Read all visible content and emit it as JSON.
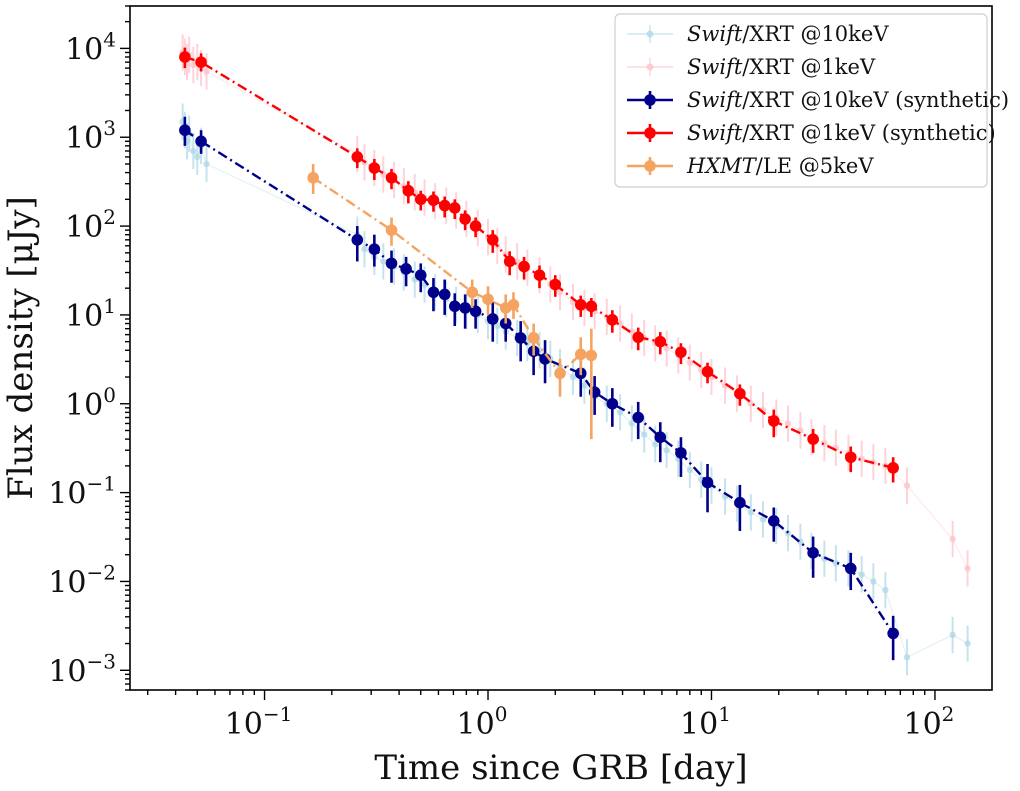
{
  "chart_data": {
    "type": "scatter",
    "x_scale": "log",
    "y_scale": "log",
    "xlabel": "Time since GRB [day]",
    "ylabel": "Flux density [μJy]",
    "xlim": [
      0.025,
      180
    ],
    "ylim": [
      0.0006,
      30000
    ],
    "x_ticks": [
      {
        "value": 0.1,
        "base": "10",
        "exp": "−1"
      },
      {
        "value": 1,
        "base": "10",
        "exp": "0"
      },
      {
        "value": 10,
        "base": "10",
        "exp": "1"
      },
      {
        "value": 100,
        "base": "10",
        "exp": "2"
      }
    ],
    "y_ticks": [
      {
        "value": 0.001,
        "base": "10",
        "exp": "−3"
      },
      {
        "value": 0.01,
        "base": "10",
        "exp": "−2"
      },
      {
        "value": 0.1,
        "base": "10",
        "exp": "−1"
      },
      {
        "value": 1,
        "base": "10",
        "exp": "0"
      },
      {
        "value": 10,
        "base": "10",
        "exp": "1"
      },
      {
        "value": 100,
        "base": "10",
        "exp": "2"
      },
      {
        "value": 1000,
        "base": "10",
        "exp": "3"
      },
      {
        "value": 10000,
        "base": "10",
        "exp": "4"
      }
    ],
    "grid": false,
    "legend_position": "top-right",
    "series": [
      {
        "name": "Swift/XRT @10keV",
        "name_italic": "Swift",
        "name_rest": "/XRT @10keV",
        "color": "#add8e6",
        "style": "faint-points",
        "x": [
          0.043,
          0.044,
          0.045,
          0.046,
          0.048,
          0.05,
          0.052,
          0.055,
          0.26,
          0.28,
          0.31,
          0.34,
          0.38,
          0.42,
          0.47,
          0.52,
          0.58,
          0.65,
          0.72,
          0.8,
          0.9,
          1.0,
          1.1,
          1.2,
          1.35,
          1.5,
          1.7,
          1.9,
          2.1,
          2.4,
          2.7,
          3.0,
          3.4,
          3.9,
          4.4,
          5.0,
          5.6,
          6.3,
          7.1,
          8.0,
          9.0,
          10.0,
          11.5,
          13.0,
          15.0,
          17.0,
          19.5,
          22.0,
          25.0,
          28.0,
          32.0,
          36.0,
          41.0,
          47.0,
          53.0,
          60.0,
          75.0,
          120.0,
          140.0
        ],
        "y": [
          1500,
          1200,
          900,
          1100,
          700,
          600,
          800,
          500,
          80,
          55,
          45,
          40,
          35,
          30,
          25,
          22,
          18,
          15,
          13,
          11,
          10,
          8.5,
          7.5,
          6.5,
          5.5,
          4.8,
          4.0,
          3.2,
          2.6,
          2.0,
          1.6,
          1.2,
          1.0,
          0.8,
          0.6,
          0.45,
          0.35,
          0.3,
          0.24,
          0.18,
          0.14,
          0.12,
          0.09,
          0.075,
          0.06,
          0.05,
          0.042,
          0.035,
          0.028,
          0.022,
          0.018,
          0.016,
          0.014,
          0.012,
          0.01,
          0.008,
          0.0014,
          0.0025,
          0.002
        ]
      },
      {
        "name": "Swift/XRT @1keV",
        "name_italic": "Swift",
        "name_rest": "/XRT @1keV",
        "color": "#ffc0cb",
        "style": "faint-points",
        "x": [
          0.043,
          0.044,
          0.045,
          0.046,
          0.048,
          0.05,
          0.052,
          0.055,
          0.26,
          0.28,
          0.31,
          0.34,
          0.38,
          0.42,
          0.47,
          0.52,
          0.58,
          0.65,
          0.72,
          0.8,
          0.9,
          1.0,
          1.1,
          1.2,
          1.35,
          1.5,
          1.7,
          1.9,
          2.1,
          2.4,
          2.7,
          3.0,
          3.4,
          3.9,
          4.4,
          5.0,
          5.6,
          6.3,
          7.1,
          8.0,
          9.0,
          10.0,
          11.5,
          13.0,
          15.0,
          17.0,
          19.5,
          22.0,
          25.0,
          28.0,
          32.0,
          36.0,
          41.0,
          47.0,
          53.0,
          60.0,
          75.0,
          120.0,
          140.0
        ],
        "y": [
          9000,
          8000,
          7000,
          8500,
          6500,
          7000,
          6000,
          5500,
          650,
          520,
          450,
          380,
          330,
          280,
          240,
          210,
          190,
          170,
          150,
          120,
          95,
          75,
          60,
          48,
          40,
          34,
          28,
          22,
          18,
          14,
          12,
          11,
          9.5,
          8.0,
          6.5,
          5.5,
          4.8,
          4.2,
          3.5,
          2.9,
          2.4,
          2.0,
          1.6,
          1.3,
          1.0,
          0.85,
          0.7,
          0.6,
          0.5,
          0.42,
          0.36,
          0.32,
          0.28,
          0.24,
          0.22,
          0.2,
          0.12,
          0.03,
          0.014
        ]
      },
      {
        "name": "Swift/XRT @10keV (synthetic)",
        "name_italic": "Swift",
        "name_rest": "/XRT @10keV (synthetic)",
        "color": "#00008b",
        "style": "errorbar-line",
        "x": [
          0.044,
          0.052,
          0.26,
          0.31,
          0.37,
          0.43,
          0.5,
          0.57,
          0.64,
          0.71,
          0.79,
          0.88,
          1.05,
          1.2,
          1.4,
          1.6,
          1.8,
          2.6,
          3.0,
          3.6,
          4.7,
          5.9,
          7.3,
          9.6,
          13.4,
          19.0,
          28.5,
          42.0,
          65.0
        ],
        "y": [
          1200,
          900,
          70,
          55,
          38,
          33,
          28,
          18,
          17,
          12.5,
          12,
          11,
          9,
          8,
          5.5,
          3.9,
          3.2,
          2.2,
          1.35,
          1.0,
          0.7,
          0.42,
          0.28,
          0.13,
          0.077,
          0.048,
          0.021,
          0.014,
          0.0026
        ],
        "err_lo": [
          400,
          250,
          30,
          20,
          15,
          12,
          10,
          7,
          7,
          5,
          5,
          4,
          4,
          3,
          2.5,
          1.8,
          1.5,
          1.0,
          0.6,
          0.45,
          0.3,
          0.2,
          0.13,
          0.07,
          0.04,
          0.02,
          0.01,
          0.006,
          0.0013
        ],
        "err_hi": [
          500,
          300,
          30,
          25,
          15,
          12,
          10,
          8,
          8,
          5,
          5,
          4,
          5,
          3,
          3,
          2,
          2,
          1.2,
          0.7,
          0.5,
          0.35,
          0.2,
          0.14,
          0.08,
          0.045,
          0.02,
          0.011,
          0.007,
          0.0015
        ]
      },
      {
        "name": "Swift/XRT @1keV (synthetic)",
        "name_italic": "Swift",
        "name_rest": "/XRT @1keV (synthetic)",
        "color": "#ff0000",
        "style": "errorbar-line",
        "x": [
          0.044,
          0.052,
          0.26,
          0.31,
          0.37,
          0.44,
          0.5,
          0.57,
          0.64,
          0.71,
          0.79,
          0.88,
          1.05,
          1.25,
          1.45,
          1.7,
          2.0,
          2.6,
          2.9,
          3.6,
          4.7,
          5.9,
          7.3,
          9.6,
          13.4,
          19.0,
          28.5,
          42.0,
          65.0
        ],
        "y": [
          8000,
          7000,
          600,
          450,
          350,
          250,
          200,
          195,
          170,
          160,
          120,
          100,
          70,
          40,
          35,
          28,
          22,
          13,
          12.5,
          8.8,
          5.6,
          5.0,
          3.8,
          2.3,
          1.3,
          0.64,
          0.4,
          0.25,
          0.19
        ],
        "err_lo": [
          2000,
          1500,
          150,
          120,
          90,
          70,
          50,
          50,
          45,
          40,
          30,
          25,
          20,
          12,
          10,
          8,
          6,
          3.5,
          3,
          2.5,
          1.6,
          1.4,
          1.0,
          0.6,
          0.35,
          0.22,
          0.12,
          0.08,
          0.06
        ],
        "err_hi": [
          2200,
          1800,
          150,
          120,
          90,
          70,
          50,
          50,
          45,
          40,
          30,
          25,
          20,
          12,
          10,
          8,
          6,
          3.5,
          3,
          2.5,
          1.6,
          1.4,
          1.0,
          0.6,
          0.35,
          0.22,
          0.12,
          0.08,
          0.06
        ]
      },
      {
        "name": "HXMT/LE @5keV",
        "name_italic": "HXMT",
        "name_rest": "/LE @5keV",
        "color": "#f4a460",
        "style": "errorbar-line",
        "x": [
          0.165,
          0.37,
          0.85,
          1.0,
          1.2,
          1.3,
          1.6,
          2.1,
          2.6,
          2.9
        ],
        "y": [
          350,
          90,
          18,
          15,
          12,
          13,
          5.5,
          2.2,
          3.6,
          3.5
        ],
        "err_lo": [
          120,
          30,
          6,
          5,
          4,
          4,
          2,
          1.0,
          1.5,
          3.1
        ],
        "err_hi": [
          150,
          35,
          7,
          6,
          5,
          5,
          2.5,
          1.0,
          2.0,
          3.5
        ]
      }
    ]
  }
}
